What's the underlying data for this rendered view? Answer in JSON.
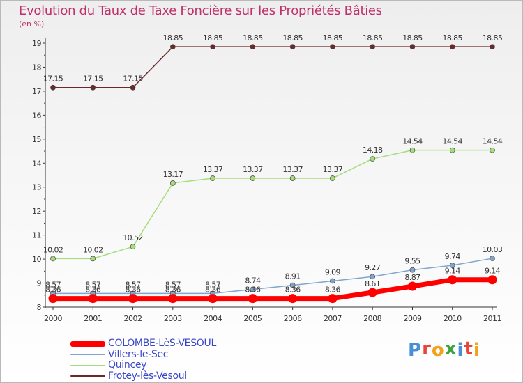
{
  "title": "Evolution du Taux de Taxe Foncière sur les Propriétés Bâties",
  "unit_label": "(en %)",
  "colors": {
    "title": "#c0306a",
    "legend_text": "#3a46c8",
    "axis": "#333333",
    "grid": "#cccccc"
  },
  "logo": {
    "text": "Proxiti",
    "letters": [
      {
        "ch": "P",
        "color": "#4a8fd6"
      },
      {
        "ch": "r",
        "color": "#e8443a"
      },
      {
        "ch": "o",
        "color": "#f2a31b"
      },
      {
        "ch": "x",
        "color": "#3aa63a"
      },
      {
        "ch": "i",
        "color": "#4a8fd6"
      },
      {
        "ch": "t",
        "color": "#e8443a"
      },
      {
        "ch": "i",
        "color": "#f2a31b"
      }
    ]
  },
  "chart_data": {
    "type": "line",
    "title": "Evolution du Taux de Taxe Foncière sur les Propriétés Bâties",
    "ylabel": "(en %)",
    "xlabel": "",
    "x": [
      "2000",
      "2001",
      "2002",
      "2003",
      "2004",
      "2005",
      "2006",
      "2007",
      "2008",
      "2009",
      "2010",
      "2011"
    ],
    "ylim": [
      8,
      19
    ],
    "yticks": [
      "8",
      "9",
      "10",
      "11",
      "12",
      "13",
      "14",
      "15",
      "16",
      "17",
      "18",
      "19"
    ],
    "grid": false,
    "legend_position": "bottom-left",
    "series": [
      {
        "name": "Frotey-lès-Vesoul",
        "color": "#6b2a2a",
        "width": 1.5,
        "marker": 3.5,
        "values": [
          17.15,
          17.15,
          17.15,
          18.85,
          18.85,
          18.85,
          18.85,
          18.85,
          18.85,
          18.85,
          18.85,
          18.85
        ],
        "labels": [
          "17.15",
          "17.15",
          "17.15",
          "18.85",
          "18.85",
          "18.85",
          "18.85",
          "18.85",
          "18.85",
          "18.85",
          "18.85",
          "18.85"
        ]
      },
      {
        "name": "Quincey",
        "color": "#a5dc7c",
        "width": 1.5,
        "marker": 3.5,
        "values": [
          10.02,
          10.02,
          10.52,
          13.17,
          13.37,
          13.37,
          13.37,
          13.37,
          14.18,
          14.54,
          14.54,
          14.54
        ],
        "labels": [
          "10.02",
          "10.02",
          "10.52",
          "13.17",
          "13.37",
          "13.37",
          "13.37",
          "13.37",
          "14.18",
          "14.54",
          "14.54",
          "14.54"
        ]
      },
      {
        "name": "Villers-le-Sec",
        "color": "#7fa6cc",
        "width": 1.5,
        "marker": 3.5,
        "values": [
          8.57,
          8.57,
          8.57,
          8.57,
          8.57,
          8.74,
          8.91,
          9.09,
          9.27,
          9.55,
          9.74,
          10.03
        ],
        "labels": [
          "8.57",
          "8.57",
          "8.57",
          "8.57",
          "8.57",
          "8.74",
          "8.91",
          "9.09",
          "9.27",
          "9.55",
          "9.74",
          "10.03"
        ]
      },
      {
        "name": "COLOMBE-LèS-VESOUL",
        "color": "#ff0000",
        "width": 7,
        "marker": 6.5,
        "values": [
          8.36,
          8.36,
          8.36,
          8.36,
          8.36,
          8.36,
          8.36,
          8.36,
          8.61,
          8.87,
          9.14,
          9.14
        ],
        "labels": [
          "8.36",
          "8.36",
          "8.36",
          "8.36",
          "8.36",
          "8.36",
          "8.36",
          "8.36",
          "8.61",
          "8.87",
          "9.14",
          "9.14"
        ]
      }
    ]
  },
  "legend": [
    {
      "label": "COLOMBE-LèS-VESOUL",
      "color": "#ff0000",
      "thick": true
    },
    {
      "label": "Villers-le-Sec",
      "color": "#7fa6cc",
      "thick": false
    },
    {
      "label": "Quincey",
      "color": "#a5dc7c",
      "thick": false
    },
    {
      "label": "Frotey-lès-Vesoul",
      "color": "#6b2a2a",
      "thick": false
    }
  ]
}
